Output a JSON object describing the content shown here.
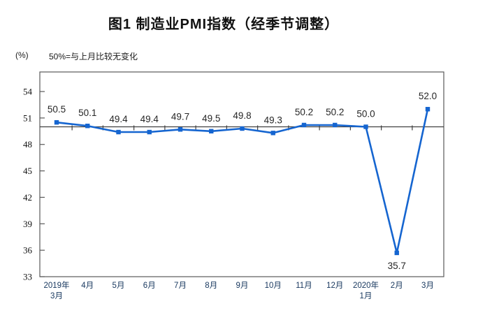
{
  "header": {
    "unit_label": "(%)",
    "reference_note": "50%=与上月比较无变化"
  },
  "chart_data": {
    "type": "line",
    "title": "图1 制造业PMI指数（经季节调整）",
    "ylabel": "(%)",
    "note": "50%=与上月比较无变化",
    "categories": [
      [
        "2019年",
        "3月"
      ],
      [
        "4月"
      ],
      [
        "5月"
      ],
      [
        "6月"
      ],
      [
        "7月"
      ],
      [
        "8月"
      ],
      [
        "9月"
      ],
      [
        "10月"
      ],
      [
        "11月"
      ],
      [
        "12月"
      ],
      [
        "2020年",
        "1月"
      ],
      [
        "2月"
      ],
      [
        "3月"
      ]
    ],
    "series": [
      {
        "name": "制造业PMI",
        "values": [
          50.5,
          50.1,
          49.4,
          49.4,
          49.7,
          49.5,
          49.8,
          49.3,
          50.2,
          50.2,
          50.0,
          35.7,
          52.0
        ]
      }
    ],
    "data_labels": [
      "50.5",
      "50.1",
      "49.4",
      "49.4",
      "49.7",
      "49.5",
      "49.8",
      "49.3",
      "50.2",
      "50.2",
      "50.0",
      "35.7",
      "52.0"
    ],
    "label_positions": [
      "above",
      "above",
      "above",
      "above",
      "above",
      "above",
      "above",
      "above",
      "above",
      "above",
      "above",
      "below",
      "above"
    ],
    "y_ticks": [
      54,
      51,
      48,
      45,
      42,
      39,
      36,
      33
    ],
    "ylim": [
      33,
      56.2
    ],
    "reference_line_value": 50,
    "grid": "off",
    "legend": "none",
    "colors": {
      "line": "#1565d0",
      "marker": "#1565d0",
      "axis_border": "#595959",
      "reference_line": "#404040",
      "x_tick_label": "#17375e",
      "y_tick_label": "#111111",
      "data_label": "#262626",
      "title": "#111111"
    }
  }
}
